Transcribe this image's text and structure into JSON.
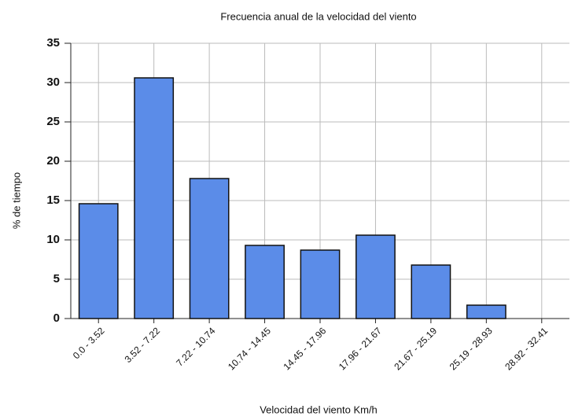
{
  "chart_data": {
    "type": "bar",
    "title": "Frecuencia anual de la velocidad del viento",
    "xlabel": "Velocidad del viento Km/h",
    "ylabel": "% de tiempo",
    "categories": [
      "0.0 - 3.52",
      "3.52 - 7.22",
      "7.22 - 10.74",
      "10.74 - 14.45",
      "14.45 - 17.96",
      "17.96 - 21.67",
      "21.67 - 25.19",
      "25.19 - 28.93",
      "28.92 - 32.41"
    ],
    "values": [
      14.6,
      30.6,
      17.8,
      9.3,
      8.7,
      10.6,
      6.8,
      1.7,
      0
    ],
    "color": "#5b8ce8",
    "ylim": [
      0,
      35
    ],
    "yticks": [
      0,
      5,
      10,
      15,
      20,
      25,
      30,
      35
    ],
    "grid": true
  }
}
